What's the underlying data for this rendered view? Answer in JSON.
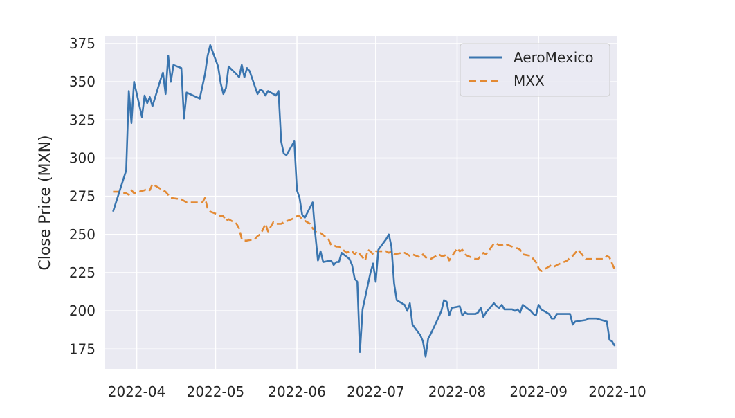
{
  "chart_data": {
    "type": "line",
    "title": "",
    "xlabel": "",
    "ylabel": "Close Price (MXN)",
    "ylim": [
      162,
      380
    ],
    "xlim": [
      "2022-03-20",
      "2022-10-01"
    ],
    "yticks": [
      175,
      200,
      225,
      250,
      275,
      300,
      325,
      350,
      375
    ],
    "xticks": [
      {
        "date": "2022-04-01",
        "label": "2022-04"
      },
      {
        "date": "2022-05-01",
        "label": "2022-05"
      },
      {
        "date": "2022-06-01",
        "label": "2022-06"
      },
      {
        "date": "2022-07-01",
        "label": "2022-07"
      },
      {
        "date": "2022-08-01",
        "label": "2022-08"
      },
      {
        "date": "2022-09-01",
        "label": "2022-09"
      },
      {
        "date": "2022-10-01",
        "label": "2022-10"
      }
    ],
    "grid": true,
    "legend_position": "top-right",
    "series": [
      {
        "name": "AeroMexico",
        "color": "#3a75af",
        "style": "solid",
        "points": [
          [
            "2022-03-23",
            265
          ],
          [
            "2022-03-28",
            292
          ],
          [
            "2022-03-29",
            344
          ],
          [
            "2022-03-30",
            323
          ],
          [
            "2022-03-31",
            350
          ],
          [
            "2022-04-03",
            327
          ],
          [
            "2022-04-04",
            341
          ],
          [
            "2022-04-05",
            336
          ],
          [
            "2022-04-06",
            340
          ],
          [
            "2022-04-07",
            334
          ],
          [
            "2022-04-10",
            351
          ],
          [
            "2022-04-11",
            356
          ],
          [
            "2022-04-12",
            342
          ],
          [
            "2022-04-13",
            367
          ],
          [
            "2022-04-14",
            350
          ],
          [
            "2022-04-15",
            361
          ],
          [
            "2022-04-18",
            359
          ],
          [
            "2022-04-19",
            326
          ],
          [
            "2022-04-20",
            343
          ],
          [
            "2022-04-25",
            339
          ],
          [
            "2022-04-27",
            355
          ],
          [
            "2022-04-28",
            367
          ],
          [
            "2022-04-29",
            374
          ],
          [
            "2022-05-02",
            360
          ],
          [
            "2022-05-03",
            349
          ],
          [
            "2022-05-04",
            342
          ],
          [
            "2022-05-05",
            346
          ],
          [
            "2022-05-06",
            360
          ],
          [
            "2022-05-09",
            355
          ],
          [
            "2022-05-10",
            353
          ],
          [
            "2022-05-11",
            361
          ],
          [
            "2022-05-12",
            353
          ],
          [
            "2022-05-13",
            359
          ],
          [
            "2022-05-14",
            357
          ],
          [
            "2022-05-17",
            342
          ],
          [
            "2022-05-18",
            345
          ],
          [
            "2022-05-19",
            344
          ],
          [
            "2022-05-20",
            341
          ],
          [
            "2022-05-21",
            344
          ],
          [
            "2022-05-24",
            341
          ],
          [
            "2022-05-25",
            344
          ],
          [
            "2022-05-26",
            311
          ],
          [
            "2022-05-27",
            303
          ],
          [
            "2022-05-28",
            302
          ],
          [
            "2022-05-31",
            311
          ],
          [
            "2022-06-01",
            279
          ],
          [
            "2022-06-02",
            274
          ],
          [
            "2022-06-03",
            263
          ],
          [
            "2022-06-04",
            261
          ],
          [
            "2022-06-07",
            271
          ],
          [
            "2022-06-08",
            250
          ],
          [
            "2022-06-09",
            233
          ],
          [
            "2022-06-10",
            239
          ],
          [
            "2022-06-11",
            232
          ],
          [
            "2022-06-14",
            233
          ],
          [
            "2022-06-15",
            230
          ],
          [
            "2022-06-16",
            232
          ],
          [
            "2022-06-17",
            232
          ],
          [
            "2022-06-18",
            238
          ],
          [
            "2022-06-21",
            234
          ],
          [
            "2022-06-22",
            230
          ],
          [
            "2022-06-23",
            221
          ],
          [
            "2022-06-24",
            219
          ],
          [
            "2022-06-25",
            173
          ],
          [
            "2022-06-26",
            201
          ],
          [
            "2022-06-29",
            225
          ],
          [
            "2022-06-30",
            231
          ],
          [
            "2022-07-01",
            219
          ],
          [
            "2022-07-02",
            240
          ],
          [
            "2022-07-05",
            247
          ],
          [
            "2022-07-06",
            250
          ],
          [
            "2022-07-07",
            242
          ],
          [
            "2022-07-08",
            218
          ],
          [
            "2022-07-09",
            207
          ],
          [
            "2022-07-12",
            204
          ],
          [
            "2022-07-13",
            200
          ],
          [
            "2022-07-14",
            205
          ],
          [
            "2022-07-15",
            191
          ],
          [
            "2022-07-18",
            184
          ],
          [
            "2022-07-19",
            180
          ],
          [
            "2022-07-20",
            170
          ],
          [
            "2022-07-21",
            182
          ],
          [
            "2022-07-22",
            185
          ],
          [
            "2022-07-25",
            196
          ],
          [
            "2022-07-26",
            200
          ],
          [
            "2022-07-27",
            207
          ],
          [
            "2022-07-28",
            206
          ],
          [
            "2022-07-29",
            197
          ],
          [
            "2022-07-30",
            202
          ],
          [
            "2022-08-02",
            203
          ],
          [
            "2022-08-03",
            197
          ],
          [
            "2022-08-04",
            199
          ],
          [
            "2022-08-05",
            198
          ],
          [
            "2022-08-08",
            198
          ],
          [
            "2022-08-09",
            199
          ],
          [
            "2022-08-10",
            202
          ],
          [
            "2022-08-11",
            196
          ],
          [
            "2022-08-12",
            199
          ],
          [
            "2022-08-15",
            205
          ],
          [
            "2022-08-16",
            203
          ],
          [
            "2022-08-17",
            202
          ],
          [
            "2022-08-18",
            204
          ],
          [
            "2022-08-19",
            201
          ],
          [
            "2022-08-22",
            201
          ],
          [
            "2022-08-23",
            200
          ],
          [
            "2022-08-24",
            201
          ],
          [
            "2022-08-25",
            199
          ],
          [
            "2022-08-26",
            204
          ],
          [
            "2022-08-29",
            200
          ],
          [
            "2022-08-30",
            198
          ],
          [
            "2022-08-31",
            197
          ],
          [
            "2022-09-01",
            204
          ],
          [
            "2022-09-02",
            201
          ],
          [
            "2022-09-05",
            198
          ],
          [
            "2022-09-06",
            195
          ],
          [
            "2022-09-07",
            195
          ],
          [
            "2022-09-08",
            198
          ],
          [
            "2022-09-13",
            198
          ],
          [
            "2022-09-14",
            191
          ],
          [
            "2022-09-15",
            193
          ],
          [
            "2022-09-19",
            194
          ],
          [
            "2022-09-20",
            195
          ],
          [
            "2022-09-23",
            195
          ],
          [
            "2022-09-27",
            193
          ],
          [
            "2022-09-28",
            181
          ],
          [
            "2022-09-29",
            180
          ],
          [
            "2022-09-30",
            177
          ]
        ]
      },
      {
        "name": "MXX",
        "color": "#e38a34",
        "style": "dashed",
        "points": [
          [
            "2022-03-23",
            278
          ],
          [
            "2022-03-25",
            278
          ],
          [
            "2022-03-28",
            277
          ],
          [
            "2022-03-29",
            276
          ],
          [
            "2022-03-30",
            279
          ],
          [
            "2022-03-31",
            277
          ],
          [
            "2022-04-04",
            279
          ],
          [
            "2022-04-05",
            280
          ],
          [
            "2022-04-06",
            279
          ],
          [
            "2022-04-07",
            283
          ],
          [
            "2022-04-08",
            282
          ],
          [
            "2022-04-11",
            279
          ],
          [
            "2022-04-12",
            278
          ],
          [
            "2022-04-13",
            276
          ],
          [
            "2022-04-14",
            274
          ],
          [
            "2022-04-18",
            273
          ],
          [
            "2022-04-19",
            272
          ],
          [
            "2022-04-20",
            271
          ],
          [
            "2022-04-25",
            271
          ],
          [
            "2022-04-26",
            271
          ],
          [
            "2022-04-27",
            274
          ],
          [
            "2022-04-28",
            267
          ],
          [
            "2022-04-29",
            265
          ],
          [
            "2022-05-02",
            263
          ],
          [
            "2022-05-03",
            262
          ],
          [
            "2022-05-04",
            262
          ],
          [
            "2022-05-05",
            259
          ],
          [
            "2022-05-06",
            260
          ],
          [
            "2022-05-09",
            257
          ],
          [
            "2022-05-10",
            254
          ],
          [
            "2022-05-11",
            247
          ],
          [
            "2022-05-12",
            246
          ],
          [
            "2022-05-13",
            246
          ],
          [
            "2022-05-16",
            247
          ],
          [
            "2022-05-17",
            249
          ],
          [
            "2022-05-18",
            250
          ],
          [
            "2022-05-19",
            253
          ],
          [
            "2022-05-20",
            257
          ],
          [
            "2022-05-21",
            252
          ],
          [
            "2022-05-23",
            258
          ],
          [
            "2022-05-24",
            257
          ],
          [
            "2022-05-25",
            257
          ],
          [
            "2022-05-26",
            257
          ],
          [
            "2022-05-27",
            258
          ],
          [
            "2022-05-30",
            260
          ],
          [
            "2022-05-31",
            261
          ],
          [
            "2022-06-01",
            262
          ],
          [
            "2022-06-02",
            262
          ],
          [
            "2022-06-03",
            260
          ],
          [
            "2022-06-06",
            257
          ],
          [
            "2022-06-07",
            254
          ],
          [
            "2022-06-08",
            252
          ],
          [
            "2022-06-09",
            251
          ],
          [
            "2022-06-10",
            251
          ],
          [
            "2022-06-13",
            247
          ],
          [
            "2022-06-14",
            243
          ],
          [
            "2022-06-15",
            243
          ],
          [
            "2022-06-16",
            242
          ],
          [
            "2022-06-17",
            242
          ],
          [
            "2022-06-20",
            238
          ],
          [
            "2022-06-21",
            239
          ],
          [
            "2022-06-22",
            239
          ],
          [
            "2022-06-23",
            237
          ],
          [
            "2022-06-24",
            239
          ],
          [
            "2022-06-27",
            233
          ],
          [
            "2022-06-28",
            240
          ],
          [
            "2022-06-29",
            239
          ],
          [
            "2022-06-30",
            237
          ],
          [
            "2022-07-01",
            239
          ],
          [
            "2022-07-04",
            239
          ],
          [
            "2022-07-05",
            239
          ],
          [
            "2022-07-06",
            238
          ],
          [
            "2022-07-07",
            239
          ],
          [
            "2022-07-08",
            237
          ],
          [
            "2022-07-11",
            238
          ],
          [
            "2022-07-12",
            238
          ],
          [
            "2022-07-13",
            237
          ],
          [
            "2022-07-14",
            236
          ],
          [
            "2022-07-15",
            237
          ],
          [
            "2022-07-18",
            235
          ],
          [
            "2022-07-19",
            237
          ],
          [
            "2022-07-20",
            235
          ],
          [
            "2022-07-21",
            235
          ],
          [
            "2022-07-22",
            234
          ],
          [
            "2022-07-25",
            237
          ],
          [
            "2022-07-26",
            236
          ],
          [
            "2022-07-27",
            236
          ],
          [
            "2022-07-28",
            237
          ],
          [
            "2022-07-29",
            233
          ],
          [
            "2022-08-01",
            241
          ],
          [
            "2022-08-02",
            239
          ],
          [
            "2022-08-03",
            240
          ],
          [
            "2022-08-04",
            237
          ],
          [
            "2022-08-05",
            236
          ],
          [
            "2022-08-08",
            234
          ],
          [
            "2022-08-09",
            234
          ],
          [
            "2022-08-10",
            236
          ],
          [
            "2022-08-11",
            238
          ],
          [
            "2022-08-12",
            237
          ],
          [
            "2022-08-15",
            244
          ],
          [
            "2022-08-16",
            244
          ],
          [
            "2022-08-17",
            243
          ],
          [
            "2022-08-18",
            243
          ],
          [
            "2022-08-19",
            244
          ],
          [
            "2022-08-22",
            242
          ],
          [
            "2022-08-23",
            241
          ],
          [
            "2022-08-24",
            241
          ],
          [
            "2022-08-25",
            240
          ],
          [
            "2022-08-26",
            237
          ],
          [
            "2022-08-29",
            236
          ],
          [
            "2022-08-30",
            234
          ],
          [
            "2022-08-31",
            232
          ],
          [
            "2022-09-01",
            228
          ],
          [
            "2022-09-02",
            226
          ],
          [
            "2022-09-05",
            229
          ],
          [
            "2022-09-06",
            230
          ],
          [
            "2022-09-07",
            229
          ],
          [
            "2022-09-08",
            230
          ],
          [
            "2022-09-12",
            233
          ],
          [
            "2022-09-13",
            235
          ],
          [
            "2022-09-14",
            236
          ],
          [
            "2022-09-15",
            238
          ],
          [
            "2022-09-16",
            240
          ],
          [
            "2022-09-19",
            234
          ],
          [
            "2022-09-20",
            234
          ],
          [
            "2022-09-21",
            234
          ],
          [
            "2022-09-22",
            234
          ],
          [
            "2022-09-23",
            234
          ],
          [
            "2022-09-26",
            234
          ],
          [
            "2022-09-27",
            236
          ],
          [
            "2022-09-28",
            235
          ],
          [
            "2022-09-29",
            231
          ],
          [
            "2022-09-30",
            227
          ]
        ]
      }
    ]
  }
}
